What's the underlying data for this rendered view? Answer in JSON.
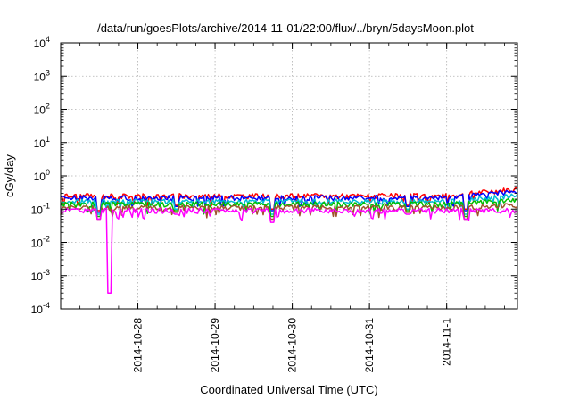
{
  "chart_data": {
    "type": "line",
    "title": "/data/run/goesPlots/archive/2014-11-01/22:00/flux/../bryn/5daysMoon.plot",
    "xlabel": "Coordinated Universal Time (UTC)",
    "ylabel": "cGy/day",
    "y_scale": "log",
    "ylim": [
      0.0001,
      10000
    ],
    "y_ticks": [
      {
        "base": "10",
        "exp": "-4",
        "value": 0.0001
      },
      {
        "base": "10",
        "exp": "-3",
        "value": 0.001
      },
      {
        "base": "10",
        "exp": "-2",
        "value": 0.01
      },
      {
        "base": "10",
        "exp": "-1",
        "value": 0.1
      },
      {
        "base": "10",
        "exp": "0",
        "value": 1
      },
      {
        "base": "10",
        "exp": "1",
        "value": 10
      },
      {
        "base": "10",
        "exp": "2",
        "value": 100
      },
      {
        "base": "10",
        "exp": "3",
        "value": 1000
      },
      {
        "base": "10",
        "exp": "4",
        "value": 10000
      }
    ],
    "xlim": [
      "2014-10-27 00:00",
      "2014-11-01 22:00"
    ],
    "x_ticks": [
      {
        "label": "2014-10-28",
        "value": "2014-10-28 00:00"
      },
      {
        "label": "2014-10-29",
        "value": "2014-10-29 00:00"
      },
      {
        "label": "2014-10-30",
        "value": "2014-10-30 00:00"
      },
      {
        "label": "2014-10-31",
        "value": "2014-10-31 00:00"
      },
      {
        "label": "2014-11-1",
        "value": "2014-11-01 00:00"
      }
    ],
    "grid": true,
    "series": [
      {
        "color": "#ff0000",
        "base_level": 0.25,
        "dips": [
          {
            "time": "2014-10-27 12:00",
            "value": 0.09
          },
          {
            "time": "2014-10-28 12:00",
            "value": 0.13
          },
          {
            "time": "2014-10-29 18:00",
            "value": 0.1
          },
          {
            "time": "2014-10-31 12:00",
            "value": 0.13
          },
          {
            "time": "2014-11-01 06:00",
            "value": 0.1
          }
        ],
        "end_value": 0.4
      },
      {
        "color": "#0000ff",
        "base_level": 0.22,
        "dips": [
          {
            "time": "2014-10-27 12:00",
            "value": 0.08
          },
          {
            "time": "2014-10-28 12:00",
            "value": 0.12
          },
          {
            "time": "2014-10-29 18:00",
            "value": 0.09
          },
          {
            "time": "2014-10-31 12:00",
            "value": 0.12
          },
          {
            "time": "2014-11-01 06:00",
            "value": 0.09
          }
        ],
        "end_value": 0.35
      },
      {
        "color": "#00bcd4",
        "base_level": 0.17,
        "dips": [
          {
            "time": "2014-10-27 12:00",
            "value": 0.07
          },
          {
            "time": "2014-10-28 12:00",
            "value": 0.1
          },
          {
            "time": "2014-10-29 18:00",
            "value": 0.07
          },
          {
            "time": "2014-10-31 12:00",
            "value": 0.1
          },
          {
            "time": "2014-11-01 06:00",
            "value": 0.07
          }
        ],
        "end_value": 0.25
      },
      {
        "color": "#00c000",
        "base_level": 0.14,
        "dips": [
          {
            "time": "2014-10-27 12:00",
            "value": 0.06
          },
          {
            "time": "2014-10-28 12:00",
            "value": 0.09
          },
          {
            "time": "2014-10-29 18:00",
            "value": 0.06
          },
          {
            "time": "2014-10-31 12:00",
            "value": 0.09
          },
          {
            "time": "2014-11-01 06:00",
            "value": 0.06
          }
        ],
        "end_value": 0.18
      },
      {
        "color": "#a0522d",
        "base_level": 0.11,
        "dips": [
          {
            "time": "2014-10-27 12:00",
            "value": 0.05
          },
          {
            "time": "2014-10-28 12:00",
            "value": 0.08
          },
          {
            "time": "2014-10-29 18:00",
            "value": 0.05
          },
          {
            "time": "2014-10-31 12:00",
            "value": 0.08
          },
          {
            "time": "2014-11-01 06:00",
            "value": 0.05
          }
        ],
        "end_value": 0.13
      },
      {
        "color": "#ff00ff",
        "base_level": 0.09,
        "dips": [
          {
            "time": "2014-10-27 12:00",
            "value": 0.05
          },
          {
            "time": "2014-10-27 15:00",
            "value": 0.0003
          },
          {
            "time": "2014-10-28 12:00",
            "value": 0.07
          },
          {
            "time": "2014-10-29 18:00",
            "value": 0.04
          },
          {
            "time": "2014-10-31 12:00",
            "value": 0.07
          },
          {
            "time": "2014-11-01 06:00",
            "value": 0.05
          }
        ],
        "end_value": 0.09
      }
    ]
  }
}
